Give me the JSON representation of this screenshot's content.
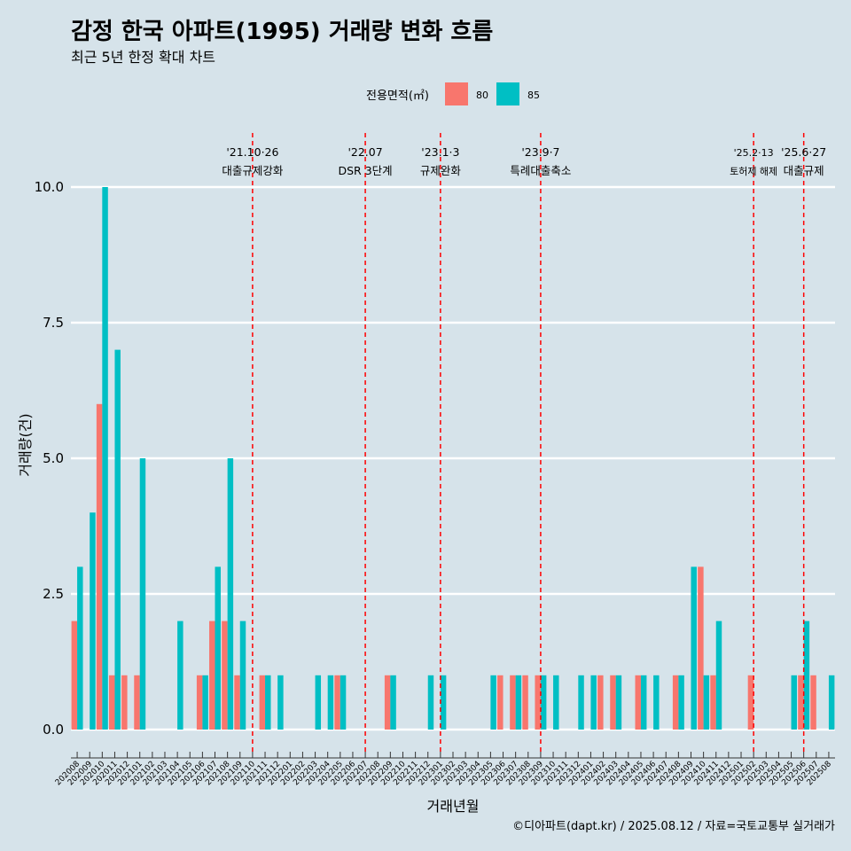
{
  "chart_data": {
    "type": "bar",
    "title": "감정 한국 아파트(1995) 거래량 변화 흐름",
    "subtitle": "최근 5년 한정 확대 차트",
    "xlabel": "거래년월",
    "ylabel": "거래량(건)",
    "ylim": [
      0,
      11
    ],
    "yticks": [
      0.0,
      2.5,
      5.0,
      7.5,
      10.0
    ],
    "ytick_labels": [
      "0.0",
      "2.5",
      "5.0",
      "7.5",
      "10.0"
    ],
    "legend_title": "전용면적(㎡)",
    "legend_position": "top",
    "caption": "©디아파트(dapt.kr) / 2025.08.12 / 자료=국토교통부 실거래가",
    "categories": [
      "202008",
      "202009",
      "202010",
      "202011",
      "202012",
      "202101",
      "202102",
      "202103",
      "202104",
      "202105",
      "202106",
      "202107",
      "202108",
      "202109",
      "202110",
      "202111",
      "202112",
      "202201",
      "202202",
      "202203",
      "202204",
      "202205",
      "202206",
      "202207",
      "202208",
      "202209",
      "202210",
      "202211",
      "202212",
      "202301",
      "202302",
      "202303",
      "202304",
      "202305",
      "202306",
      "202307",
      "202308",
      "202309",
      "202310",
      "202311",
      "202312",
      "202401",
      "202402",
      "202403",
      "202404",
      "202405",
      "202406",
      "202407",
      "202408",
      "202409",
      "202410",
      "202411",
      "202412",
      "202501",
      "202502",
      "202503",
      "202504",
      "202505",
      "202506",
      "202507",
      "202508"
    ],
    "series": [
      {
        "name": "80",
        "color": "#f8766d",
        "values": [
          2,
          0,
          6,
          1,
          1,
          1,
          0,
          0,
          0,
          0,
          1,
          2,
          2,
          1,
          0,
          1,
          0,
          0,
          0,
          0,
          0,
          1,
          0,
          0,
          0,
          1,
          0,
          0,
          0,
          0,
          0,
          0,
          0,
          0,
          1,
          1,
          1,
          1,
          0,
          0,
          0,
          0,
          1,
          1,
          0,
          1,
          0,
          0,
          1,
          0,
          3,
          1,
          0,
          0,
          1,
          0,
          0,
          0,
          1,
          1,
          0
        ]
      },
      {
        "name": "85",
        "color": "#00bfc4",
        "values": [
          3,
          4,
          10,
          7,
          0,
          5,
          0,
          0,
          2,
          0,
          1,
          3,
          5,
          2,
          0,
          1,
          1,
          0,
          0,
          1,
          1,
          1,
          0,
          0,
          0,
          1,
          0,
          0,
          1,
          1,
          0,
          0,
          0,
          1,
          0,
          1,
          0,
          1,
          1,
          0,
          1,
          1,
          0,
          1,
          0,
          1,
          1,
          0,
          1,
          3,
          1,
          2,
          0,
          0,
          0,
          0,
          0,
          1,
          2,
          0,
          1
        ]
      }
    ],
    "events": [
      {
        "date": "'21.10·26",
        "label": "대출규제강화",
        "category": "202110"
      },
      {
        "date": "'22.07",
        "label": "DSR 3단계",
        "category": "202207"
      },
      {
        "date": "'23.1·3",
        "label": "규제완화",
        "category": "202301"
      },
      {
        "date": "'23.9·7",
        "label": "특례대출축소",
        "category": "202309"
      },
      {
        "date": "'25.2·13",
        "label": "토허제 해제",
        "category": "202502"
      },
      {
        "date": "'25.6·27",
        "label": "대출규제",
        "category": "202506"
      }
    ]
  }
}
